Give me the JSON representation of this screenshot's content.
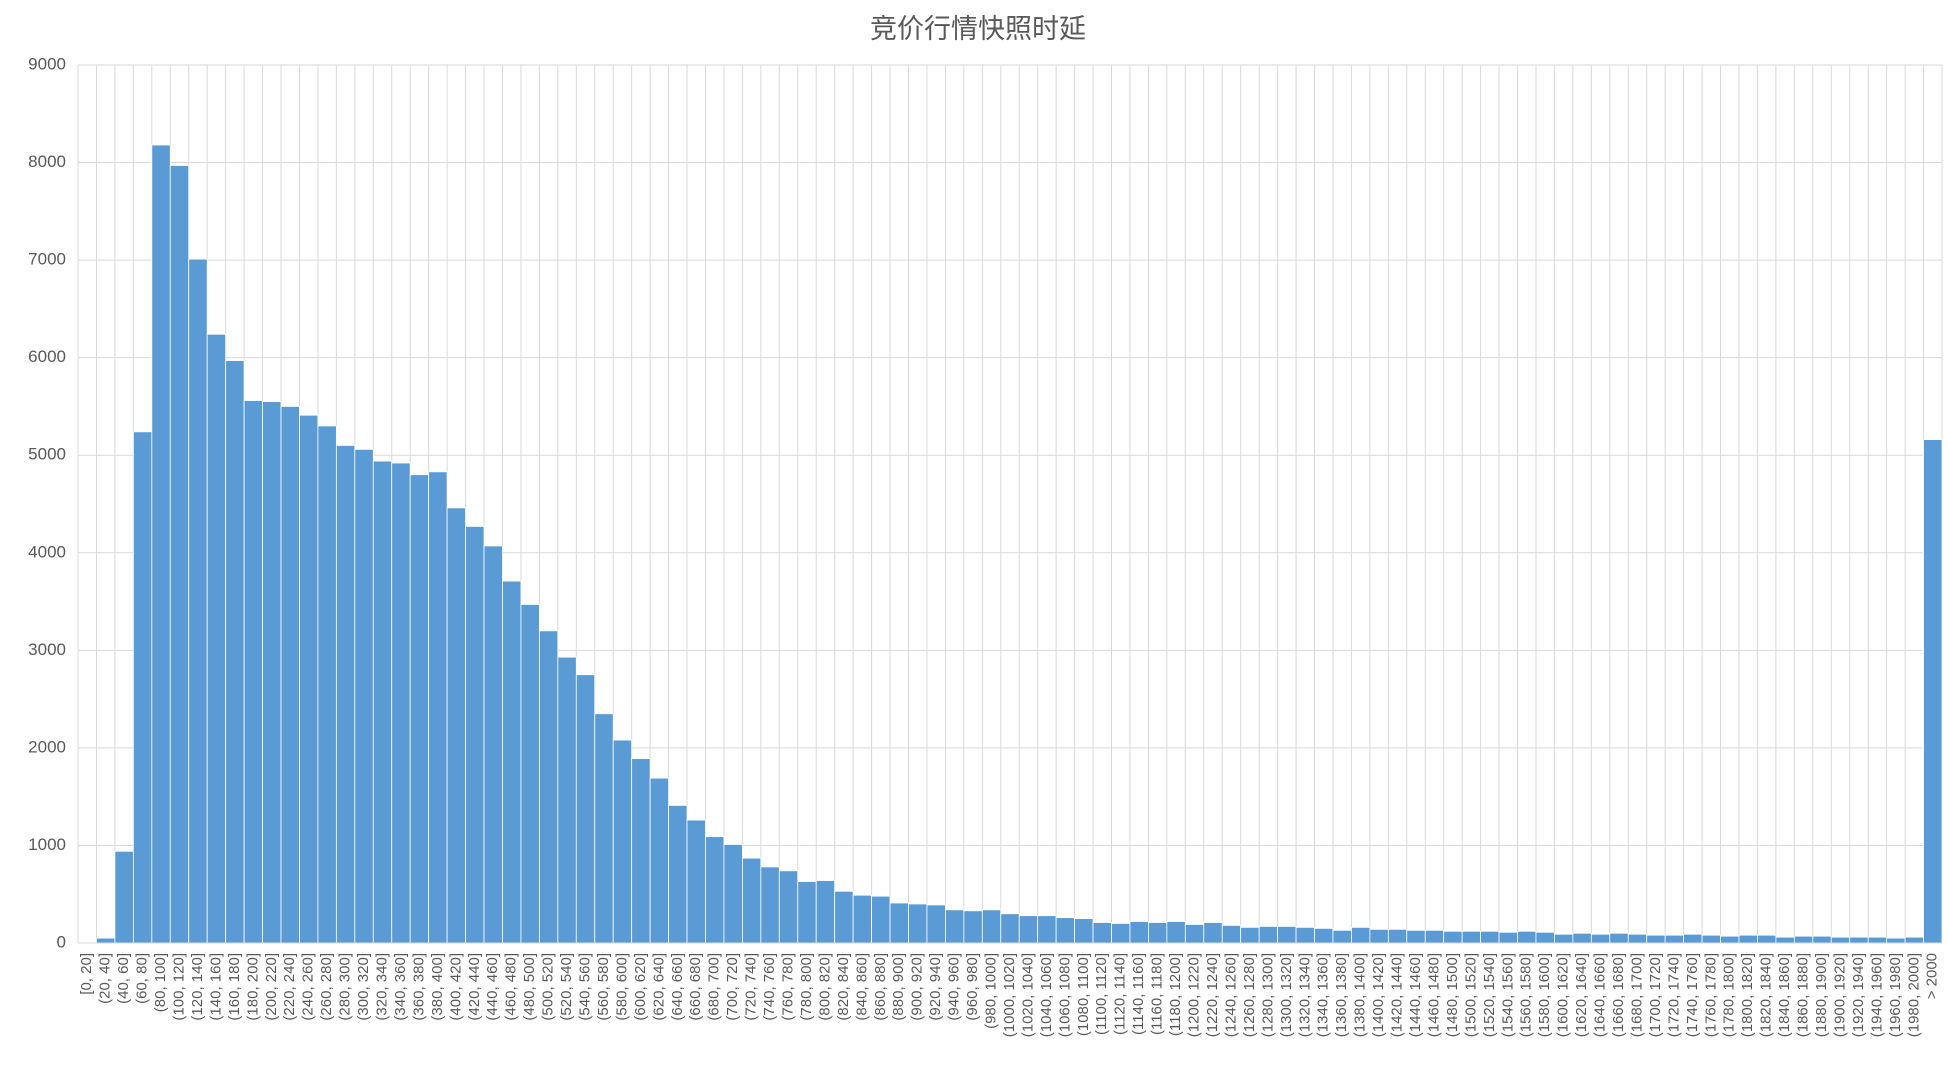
{
  "chart_data": {
    "type": "bar",
    "title": "竞价行情快照时延",
    "categories": [
      "[0, 20]",
      "(20, 40]",
      "(40, 60]",
      "(60, 80]",
      "(80, 100]",
      "(100, 120]",
      "(120, 140]",
      "(140, 160]",
      "(160, 180]",
      "(180, 200]",
      "(200, 220]",
      "(220, 240]",
      "(240, 260]",
      "(260, 280]",
      "(280, 300]",
      "(300, 320]",
      "(320, 340]",
      "(340, 360]",
      "(360, 380]",
      "(380, 400]",
      "(400, 420]",
      "(420, 440]",
      "(440, 460]",
      "(460, 480]",
      "(480, 500]",
      "(500, 520]",
      "(520, 540]",
      "(540, 560]",
      "(560, 580]",
      "(580, 600]",
      "(600, 620]",
      "(620, 640]",
      "(640, 660]",
      "(660, 680]",
      "(680, 700]",
      "(700, 720]",
      "(720, 740]",
      "(740, 760]",
      "(760, 780]",
      "(780, 800]",
      "(800, 820]",
      "(820, 840]",
      "(840, 860]",
      "(860, 880]",
      "(880, 900]",
      "(900, 920]",
      "(920, 940]",
      "(940, 960]",
      "(960, 980]",
      "(980, 1000]",
      "(1000, 1020]",
      "(1020, 1040]",
      "(1040, 1060]",
      "(1060, 1080]",
      "(1080, 1100]",
      "(1100, 1120]",
      "(1120, 1140]",
      "(1140, 1160]",
      "(1160, 1180]",
      "(1180, 1200]",
      "(1200, 1220]",
      "(1220, 1240]",
      "(1240, 1260]",
      "(1260, 1280]",
      "(1280, 1300]",
      "(1300, 1320]",
      "(1320, 1340]",
      "(1340, 1360]",
      "(1360, 1380]",
      "(1380, 1400]",
      "(1400, 1420]",
      "(1420, 1440]",
      "(1440, 1460]",
      "(1460, 1480]",
      "(1480, 1500]",
      "(1500, 1520]",
      "(1520, 1540]",
      "(1540, 1560]",
      "(1560, 1580]",
      "(1580, 1600]",
      "(1600, 1620]",
      "(1620, 1640]",
      "(1640, 1660]",
      "(1660, 1680]",
      "(1680, 1700]",
      "(1700, 1720]",
      "(1720, 1740]",
      "(1740, 1760]",
      "(1760, 1780]",
      "(1780, 1800]",
      "(1800, 1820]",
      "(1820, 1840]",
      "(1840, 1860]",
      "(1860, 1880]",
      "(1880, 1900]",
      "(1900, 1920]",
      "(1920, 1940]",
      "(1940, 1960]",
      "(1960, 1980]",
      "(1980, 2000]",
      "> 2000"
    ],
    "values": [
      0,
      50,
      940,
      5240,
      8180,
      7970,
      7010,
      6240,
      5970,
      5560,
      5550,
      5500,
      5410,
      5300,
      5100,
      5060,
      4940,
      4920,
      4800,
      4830,
      4460,
      4270,
      4070,
      3710,
      3470,
      3200,
      2930,
      2750,
      2350,
      2080,
      1890,
      1690,
      1410,
      1260,
      1090,
      1010,
      870,
      780,
      740,
      630,
      640,
      530,
      490,
      480,
      410,
      400,
      390,
      340,
      330,
      340,
      300,
      280,
      280,
      260,
      250,
      210,
      200,
      220,
      210,
      220,
      190,
      210,
      180,
      160,
      170,
      170,
      160,
      150,
      130,
      160,
      140,
      140,
      130,
      130,
      120,
      120,
      120,
      110,
      120,
      110,
      90,
      100,
      90,
      100,
      90,
      80,
      80,
      90,
      80,
      70,
      80,
      80,
      60,
      70,
      70,
      60,
      60,
      60,
      50,
      60,
      5160
    ],
    "color": "#5b9bd5",
    "ylim": [
      0,
      9000
    ],
    "yticks": [
      0,
      1000,
      2000,
      3000,
      4000,
      5000,
      6000,
      7000,
      8000,
      9000
    ],
    "grid": true
  }
}
